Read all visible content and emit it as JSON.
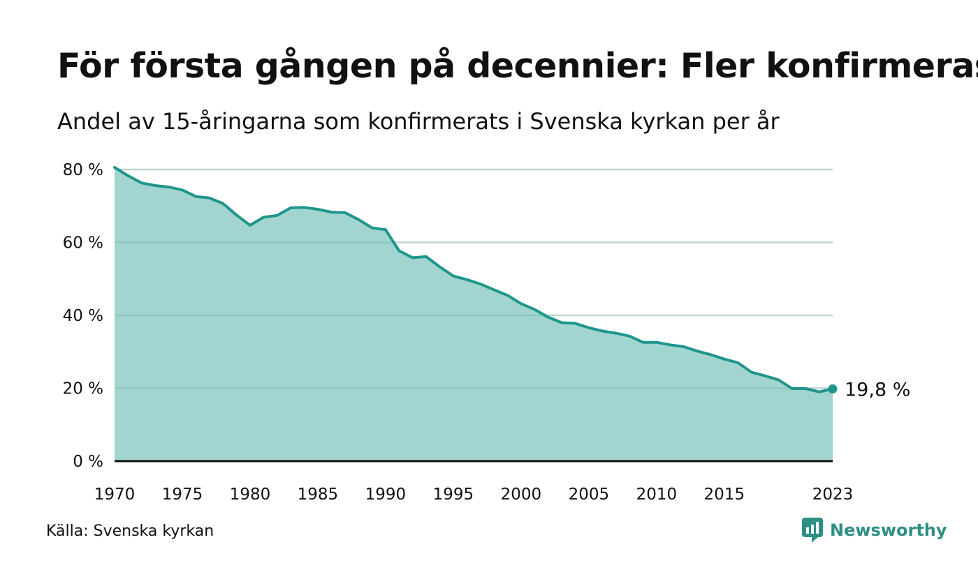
{
  "title": "För första gången på decennier: Fler konfirmeras",
  "subtitle": "Andel av 15-åringarna som konfirmerats i Svenska kyrkan per år",
  "source": "Källa: Svenska kyrkan",
  "brand": {
    "name": "Newsworthy",
    "icon": "chat-bar-chart-icon"
  },
  "colors": {
    "line": "#1f968b",
    "fill": "#a2d5cf",
    "grid": "#e3e3e3",
    "axis": "#111111",
    "brand": "#2e8f84"
  },
  "chart_data": {
    "type": "area",
    "title": "För första gången på decennier: Fler konfirmeras",
    "subtitle": "Andel av 15-åringarna som konfirmerats i Svenska kyrkan per år",
    "xlabel": "",
    "ylabel": "",
    "xlim": [
      1970,
      2023
    ],
    "ylim": [
      0,
      80
    ],
    "x_ticks": [
      1970,
      1975,
      1980,
      1985,
      1990,
      1995,
      2000,
      2005,
      2010,
      2015,
      2023
    ],
    "y_ticks": [
      0,
      20,
      40,
      60,
      80
    ],
    "y_tick_labels": [
      "0 %",
      "20 %",
      "40 %",
      "60 %",
      "80 %"
    ],
    "grid": true,
    "end_label": "19,8  %",
    "series": [
      {
        "x": [
          1970,
          1971,
          1972,
          1973,
          1974,
          1975,
          1976,
          1977,
          1978,
          1979,
          1980,
          1981,
          1982,
          1983,
          1984,
          1985,
          1986,
          1987,
          1988,
          1989,
          1990,
          1991,
          1992,
          1993,
          1994,
          1995,
          1996,
          1997,
          1998,
          1999,
          2000,
          2001,
          2002,
          2003,
          2004,
          2005,
          2006,
          2007,
          2008,
          2009,
          2010,
          2011,
          2012,
          2013,
          2014,
          2015,
          2016,
          2017,
          2018,
          2019,
          2020,
          2021,
          2022,
          2023
        ],
        "values": [
          80.6,
          78.3,
          76.3,
          75.6,
          75.2,
          74.4,
          72.6,
          72.2,
          70.7,
          67.5,
          64.7,
          66.9,
          67.4,
          69.5,
          69.6,
          69.1,
          68.3,
          68.2,
          66.3,
          64,
          63.5,
          57.7,
          55.8,
          56.1,
          53.3,
          50.8,
          49.8,
          48.6,
          47,
          45.5,
          43.2,
          41.6,
          39.5,
          38,
          37.8,
          36.6,
          35.7,
          35.1,
          34.3,
          32.6,
          32.6,
          31.9,
          31.4,
          30.2,
          29.2,
          28,
          27,
          24.4,
          23.4,
          22.3,
          19.9,
          19.9,
          19,
          19.8
        ]
      }
    ]
  }
}
